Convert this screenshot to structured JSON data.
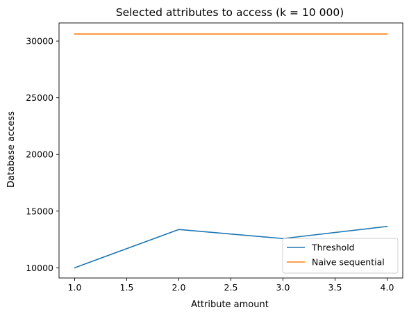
{
  "chart_data": {
    "type": "line",
    "title": "Selected attributes to access (k = 10 000)",
    "xlabel": "Attribute amount",
    "ylabel": "Database access",
    "xlim": [
      0.85,
      4.15
    ],
    "ylim": [
      9100,
      31600
    ],
    "xticks": [
      1.0,
      1.5,
      2.0,
      2.5,
      3.0,
      3.5,
      4.0
    ],
    "xtick_labels": [
      "1.0",
      "1.5",
      "2.0",
      "2.5",
      "3.0",
      "3.5",
      "4.0"
    ],
    "yticks": [
      10000,
      15000,
      20000,
      25000,
      30000
    ],
    "ytick_labels": [
      "10000",
      "15000",
      "20000",
      "25000",
      "30000"
    ],
    "grid": false,
    "legend_position": "lower-right",
    "series": [
      {
        "name": "Threshold",
        "color": "#1f77b4",
        "x": [
          1,
          2,
          3,
          4
        ],
        "values": [
          10000,
          13380,
          12580,
          13650
        ]
      },
      {
        "name": "Naive sequential",
        "color": "#ff7f0e",
        "x": [
          1,
          2,
          3,
          4
        ],
        "values": [
          30620,
          30620,
          30620,
          30620
        ]
      }
    ]
  }
}
